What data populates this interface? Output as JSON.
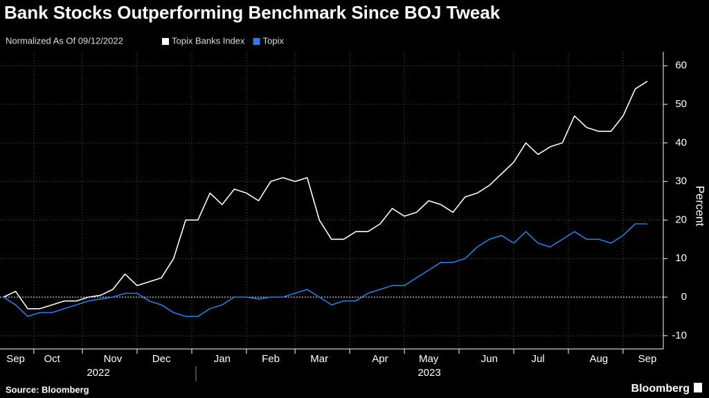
{
  "chart_data": {
    "type": "line",
    "title": "Bank Stocks Outperforming Benchmark Since BOJ Tweak",
    "subtitle": "Normalized As Of 09/12/2022",
    "y_axis_label": "Percent",
    "source": "Source: Bloomberg",
    "brand": "Bloomberg",
    "year_labels": [
      "2022",
      "2023"
    ],
    "categories": [
      null,
      "Sep",
      null,
      null,
      "Oct",
      null,
      null,
      null,
      null,
      "Nov",
      null,
      null,
      null,
      "Dec",
      null,
      null,
      null,
      null,
      "Jan",
      null,
      null,
      null,
      "Feb",
      null,
      null,
      null,
      "Mar",
      null,
      null,
      null,
      null,
      "Apr",
      null,
      null,
      null,
      "May",
      null,
      null,
      null,
      null,
      "Jun",
      null,
      null,
      null,
      "Jul",
      null,
      null,
      null,
      null,
      "Aug",
      null,
      null,
      null,
      "Sep"
    ],
    "series": [
      {
        "name": "Topix Banks Index",
        "color": "#ffffff",
        "values": [
          0,
          1.5,
          -3,
          -3,
          -2,
          -1,
          -1,
          0,
          0.5,
          2,
          6,
          3,
          4,
          5,
          10,
          20,
          20,
          27,
          24,
          28,
          27,
          25,
          30,
          31,
          30,
          31,
          20,
          15,
          15,
          17,
          17,
          19,
          23,
          21,
          22,
          25,
          24,
          22,
          26,
          27,
          29,
          32,
          35,
          40,
          37,
          39,
          40,
          47,
          44,
          43,
          43,
          47,
          54,
          56
        ]
      },
      {
        "name": "Topix",
        "color": "#2f7ce0",
        "values": [
          0,
          -2,
          -5,
          -4,
          -4,
          -3,
          -2,
          -1,
          -0.5,
          0,
          1,
          1,
          -1,
          -2,
          -4,
          -5,
          -5,
          -3,
          -2,
          0,
          0,
          -0.5,
          0,
          0,
          1,
          2,
          0,
          -2,
          -1,
          -1,
          1,
          2,
          3,
          3,
          5,
          7,
          9,
          9,
          10,
          13,
          15,
          16,
          14,
          17,
          14,
          13,
          15,
          17,
          15,
          15,
          14,
          16,
          19,
          19
        ]
      }
    ],
    "ylim": [
      -12,
      63
    ],
    "yticks": [
      -10,
      0,
      10,
      20,
      30,
      40,
      50,
      60
    ],
    "grid": true
  }
}
